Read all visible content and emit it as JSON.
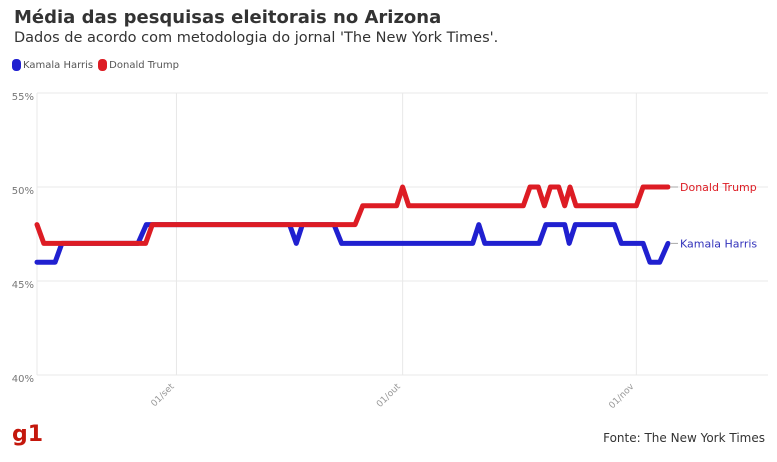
{
  "chart_data": {
    "type": "line",
    "title": "Média das pesquisas eleitorais no Arizona",
    "subtitle": "Dados de acordo com metodologia do jornal 'The New York Times'.",
    "x_unit": "days relative to 01/set",
    "xlim": [
      -18.5,
      65.2
    ],
    "ylim": [
      40,
      55
    ],
    "yticks": [
      {
        "v": 55,
        "label": "55%"
      },
      {
        "v": 50,
        "label": "50%"
      },
      {
        "v": 45,
        "label": "45%"
      },
      {
        "v": 40,
        "label": "40%"
      }
    ],
    "xticks": [
      {
        "v": 0,
        "label": "01/set"
      },
      {
        "v": 30,
        "label": "01/out"
      },
      {
        "v": 61,
        "label": "01/nov"
      }
    ],
    "legend_position": "top-left",
    "series": [
      {
        "name": "Kamala Harris",
        "color": "#2020d0",
        "label_color": "#3333bb",
        "points": [
          [
            -18.5,
            46
          ],
          [
            -16.1,
            46
          ],
          [
            -15.2,
            47
          ],
          [
            -5.1,
            47
          ],
          [
            -4,
            48
          ],
          [
            15,
            48
          ],
          [
            15.9,
            47
          ],
          [
            16.7,
            48
          ],
          [
            20.9,
            48
          ],
          [
            21.9,
            47
          ],
          [
            39.3,
            47
          ],
          [
            40.1,
            48
          ],
          [
            40.9,
            47
          ],
          [
            48.1,
            47
          ],
          [
            49,
            48
          ],
          [
            51.5,
            48
          ],
          [
            52.1,
            47
          ],
          [
            52.9,
            48
          ],
          [
            58.1,
            48
          ],
          [
            59,
            47
          ],
          [
            61.9,
            47
          ],
          [
            62.8,
            46
          ],
          [
            64.1,
            46
          ],
          [
            65.2,
            47
          ]
        ]
      },
      {
        "name": "Donald Trump",
        "color": "#dd1c24",
        "label_color": "#dd1c24",
        "points": [
          [
            -18.5,
            48
          ],
          [
            -17.6,
            47
          ],
          [
            -4.1,
            47
          ],
          [
            -3.2,
            48
          ],
          [
            23.7,
            48
          ],
          [
            24.7,
            49
          ],
          [
            29.2,
            49
          ],
          [
            30,
            50
          ],
          [
            30.8,
            49
          ],
          [
            46,
            49
          ],
          [
            46.9,
            50
          ],
          [
            48,
            50
          ],
          [
            48.8,
            49
          ],
          [
            49.6,
            50
          ],
          [
            50.7,
            50
          ],
          [
            51.5,
            49
          ],
          [
            52.2,
            50
          ],
          [
            53,
            49
          ],
          [
            61,
            49
          ],
          [
            61.9,
            50
          ],
          [
            65.2,
            50
          ]
        ]
      }
    ]
  },
  "footer": {
    "logo": "g1",
    "source": "Fonte: The New York Times"
  }
}
